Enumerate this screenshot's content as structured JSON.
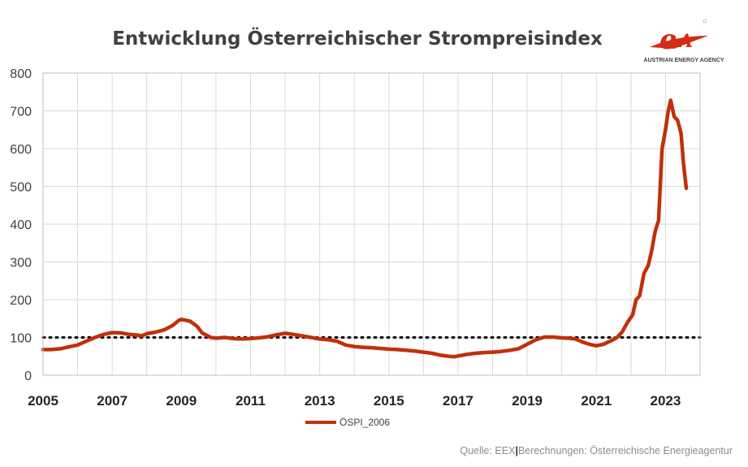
{
  "chart_data": {
    "type": "line",
    "title": "Entwicklung Österreichischer Strompreisindex",
    "xlabel": "",
    "ylabel": "",
    "xlim": [
      2005,
      2024.0
    ],
    "ylim": [
      0,
      800
    ],
    "y_ticks": [
      0,
      100,
      200,
      300,
      400,
      500,
      600,
      700,
      800
    ],
    "x_ticks": [
      2005,
      2007,
      2009,
      2011,
      2013,
      2015,
      2017,
      2019,
      2021,
      2023
    ],
    "grid": true,
    "legend_position": "bottom",
    "reference_line": {
      "y": 100,
      "style": "dotted"
    },
    "series": [
      {
        "name": "ÖSPI_2006",
        "color": "#c0300a",
        "points": [
          [
            2005.0,
            68
          ],
          [
            2005.25,
            68
          ],
          [
            2005.5,
            70
          ],
          [
            2005.75,
            75
          ],
          [
            2006.0,
            80
          ],
          [
            2006.25,
            90
          ],
          [
            2006.5,
            100
          ],
          [
            2006.75,
            108
          ],
          [
            2007.0,
            113
          ],
          [
            2007.25,
            112
          ],
          [
            2007.5,
            108
          ],
          [
            2007.75,
            106
          ],
          [
            2007.85,
            104
          ],
          [
            2008.0,
            110
          ],
          [
            2008.25,
            114
          ],
          [
            2008.5,
            120
          ],
          [
            2008.75,
            132
          ],
          [
            2008.92,
            145
          ],
          [
            2009.0,
            148
          ],
          [
            2009.25,
            143
          ],
          [
            2009.45,
            130
          ],
          [
            2009.6,
            112
          ],
          [
            2009.85,
            100
          ],
          [
            2010.0,
            98
          ],
          [
            2010.25,
            100
          ],
          [
            2010.5,
            97
          ],
          [
            2010.75,
            96
          ],
          [
            2011.0,
            97
          ],
          [
            2011.25,
            99
          ],
          [
            2011.5,
            102
          ],
          [
            2011.75,
            107
          ],
          [
            2012.0,
            111
          ],
          [
            2012.25,
            108
          ],
          [
            2012.5,
            104
          ],
          [
            2012.75,
            100
          ],
          [
            2013.0,
            96
          ],
          [
            2013.25,
            94
          ],
          [
            2013.5,
            90
          ],
          [
            2013.75,
            80
          ],
          [
            2014.0,
            76
          ],
          [
            2014.25,
            74
          ],
          [
            2014.5,
            73
          ],
          [
            2014.75,
            71
          ],
          [
            2015.0,
            69
          ],
          [
            2015.25,
            68
          ],
          [
            2015.5,
            66
          ],
          [
            2015.75,
            64
          ],
          [
            2016.0,
            61
          ],
          [
            2016.25,
            58
          ],
          [
            2016.5,
            53
          ],
          [
            2016.75,
            50
          ],
          [
            2016.9,
            49
          ],
          [
            2017.0,
            51
          ],
          [
            2017.25,
            55
          ],
          [
            2017.5,
            58
          ],
          [
            2017.75,
            60
          ],
          [
            2018.0,
            61
          ],
          [
            2018.25,
            63
          ],
          [
            2018.5,
            66
          ],
          [
            2018.75,
            70
          ],
          [
            2019.0,
            82
          ],
          [
            2019.25,
            94
          ],
          [
            2019.5,
            101
          ],
          [
            2019.75,
            101
          ],
          [
            2020.0,
            99
          ],
          [
            2020.2,
            98
          ],
          [
            2020.4,
            96
          ],
          [
            2020.6,
            88
          ],
          [
            2020.8,
            82
          ],
          [
            2021.0,
            78
          ],
          [
            2021.2,
            82
          ],
          [
            2021.4,
            90
          ],
          [
            2021.6,
            100
          ],
          [
            2021.75,
            115
          ],
          [
            2021.9,
            140
          ],
          [
            2022.05,
            160
          ],
          [
            2022.15,
            200
          ],
          [
            2022.25,
            210
          ],
          [
            2022.38,
            270
          ],
          [
            2022.5,
            290
          ],
          [
            2022.6,
            330
          ],
          [
            2022.7,
            380
          ],
          [
            2022.8,
            410
          ],
          [
            2022.9,
            600
          ],
          [
            2023.0,
            650
          ],
          [
            2023.08,
            700
          ],
          [
            2023.15,
            728
          ],
          [
            2023.25,
            685
          ],
          [
            2023.35,
            675
          ],
          [
            2023.45,
            640
          ],
          [
            2023.52,
            560
          ],
          [
            2023.6,
            495
          ]
        ]
      }
    ]
  },
  "logo": {
    "brand": "AUSTRIAN ENERGY AGENCY",
    "color": "#d42b17"
  },
  "footer": {
    "source": "Quelle: EEX",
    "separator": "|",
    "calc": "Berechnungen: Österreichische Energieagentur"
  }
}
